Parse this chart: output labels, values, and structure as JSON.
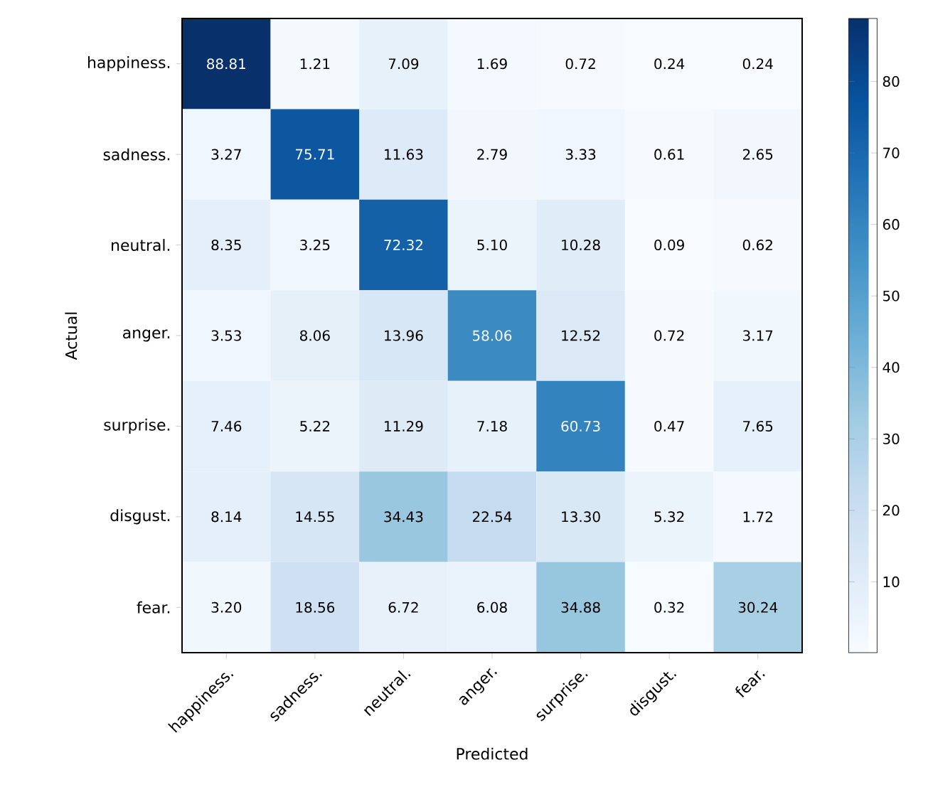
{
  "chart_data": {
    "type": "heatmap",
    "xlabel": "Predicted",
    "ylabel": "Actual",
    "categories": [
      "happiness.",
      "sadness.",
      "neutral.",
      "anger.",
      "surprise.",
      "disgust.",
      "fear."
    ],
    "y_categories": [
      "happiness.",
      "sadness.",
      "neutral.",
      "anger.",
      "surprise.",
      "disgust.",
      "fear."
    ],
    "cells": [
      [
        88.81,
        1.21,
        7.09,
        1.69,
        0.72,
        0.24,
        0.24
      ],
      [
        3.27,
        75.71,
        11.63,
        2.79,
        3.33,
        0.61,
        2.65
      ],
      [
        8.35,
        3.25,
        72.32,
        5.1,
        10.28,
        0.09,
        0.62
      ],
      [
        3.53,
        8.06,
        13.96,
        58.06,
        12.52,
        0.72,
        3.17
      ],
      [
        7.46,
        5.22,
        11.29,
        7.18,
        60.73,
        0.47,
        7.65
      ],
      [
        8.14,
        14.55,
        34.43,
        22.54,
        13.3,
        5.32,
        1.72
      ],
      [
        3.2,
        18.56,
        6.72,
        6.08,
        34.88,
        0.32,
        30.24
      ]
    ],
    "cell_labels": [
      [
        "88.81",
        "1.21",
        "7.09",
        "1.69",
        "0.72",
        "0.24",
        "0.24"
      ],
      [
        "3.27",
        "75.71",
        "11.63",
        "2.79",
        "3.33",
        "0.61",
        "2.65"
      ],
      [
        "8.35",
        "3.25",
        "72.32",
        "5.10",
        "10.28",
        "0.09",
        "0.62"
      ],
      [
        "3.53",
        "8.06",
        "13.96",
        "58.06",
        "12.52",
        "0.72",
        "3.17"
      ],
      [
        "7.46",
        "5.22",
        "11.29",
        "7.18",
        "60.73",
        "0.47",
        "7.65"
      ],
      [
        "8.14",
        "14.55",
        "34.43",
        "22.54",
        "13.30",
        "5.32",
        "1.72"
      ],
      [
        "3.20",
        "18.56",
        "6.72",
        "6.08",
        "34.88",
        "0.32",
        "30.24"
      ]
    ],
    "clim": [
      0.09,
      88.81
    ],
    "cticks": [
      10,
      20,
      30,
      40,
      50,
      60,
      70,
      80
    ]
  }
}
